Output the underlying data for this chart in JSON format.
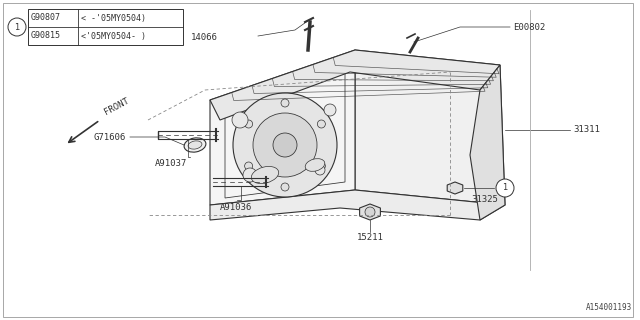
{
  "bg_color": "#ffffff",
  "lc": "#333333",
  "lc_light": "#888888",
  "diagram_id": "A154001193",
  "legend": {
    "circle_label": "1",
    "rows": [
      [
        "G90807",
        "< -'05MY0504)"
      ],
      [
        "G90815",
        "<'05MY0504- )"
      ]
    ]
  },
  "label_fontsize": 6.5,
  "legend_fontsize": 6.0,
  "part_number_font": "DejaVu Sans",
  "note_font": "monospace"
}
